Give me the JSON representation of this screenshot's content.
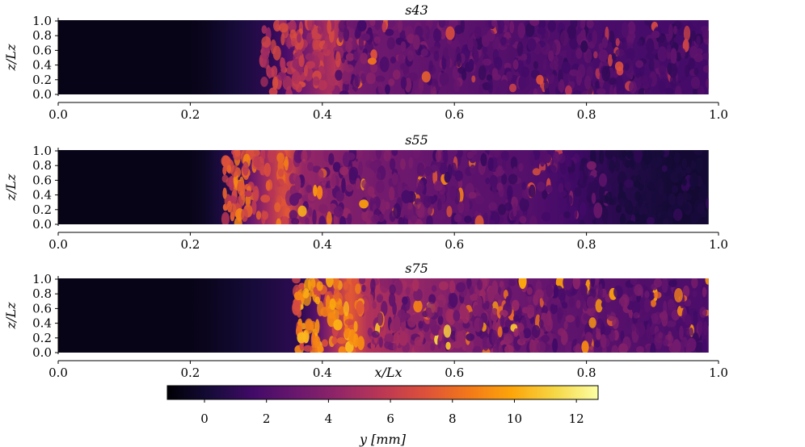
{
  "chart_data": [
    {
      "type": "heatmap",
      "title": "s43",
      "xlabel": "",
      "ylabel": "z/Lz",
      "xlim": [
        0.0,
        1.0
      ],
      "ylim": [
        0.0,
        1.0
      ],
      "x_ticks": [
        "0.0",
        "0.2",
        "0.4",
        "0.6",
        "0.8",
        "1.0"
      ],
      "y_ticks": [
        "0.0",
        "0.2",
        "0.4",
        "0.6",
        "0.8",
        "1.0"
      ],
      "domain_x_end": 0.985,
      "dark_region_end": 0.21,
      "transition_start": 0.33,
      "transition_end": 0.42,
      "peak_intensity": 7,
      "noise_intensity": 4.5
    },
    {
      "type": "heatmap",
      "title": "s55",
      "xlabel": "",
      "ylabel": "z/Lz",
      "xlim": [
        0.0,
        1.0
      ],
      "ylim": [
        0.0,
        1.0
      ],
      "x_ticks": [
        "0.0",
        "0.2",
        "0.4",
        "0.6",
        "0.8",
        "1.0"
      ],
      "y_ticks": [
        "0.0",
        "0.2",
        "0.4",
        "0.6",
        "0.8",
        "1.0"
      ],
      "domain_x_end": 0.985,
      "dark_region_end": 0.21,
      "transition_start": 0.27,
      "transition_end": 0.35,
      "fade_start": 0.72,
      "peak_intensity": 9,
      "noise_intensity": 5
    },
    {
      "type": "heatmap",
      "title": "s75",
      "xlabel": "x/Lx",
      "ylabel": "z/Lz",
      "xlim": [
        0.0,
        1.0
      ],
      "ylim": [
        0.0,
        1.0
      ],
      "x_ticks": [
        "0.0",
        "0.2",
        "0.4",
        "0.6",
        "0.8",
        "1.0"
      ],
      "y_ticks": [
        "0.0",
        "0.2",
        "0.4",
        "0.6",
        "0.8",
        "1.0"
      ],
      "domain_x_end": 0.985,
      "dark_region_end": 0.21,
      "transition_start": 0.38,
      "transition_end": 0.46,
      "peak_intensity": 10.5,
      "noise_intensity": 6
    }
  ],
  "colorbar": {
    "label": "y [mm]",
    "colormap": "inferno",
    "vmin": -1.2,
    "vmax": 12.7,
    "ticks": [
      "0",
      "2",
      "4",
      "6",
      "8",
      "10",
      "12"
    ]
  }
}
